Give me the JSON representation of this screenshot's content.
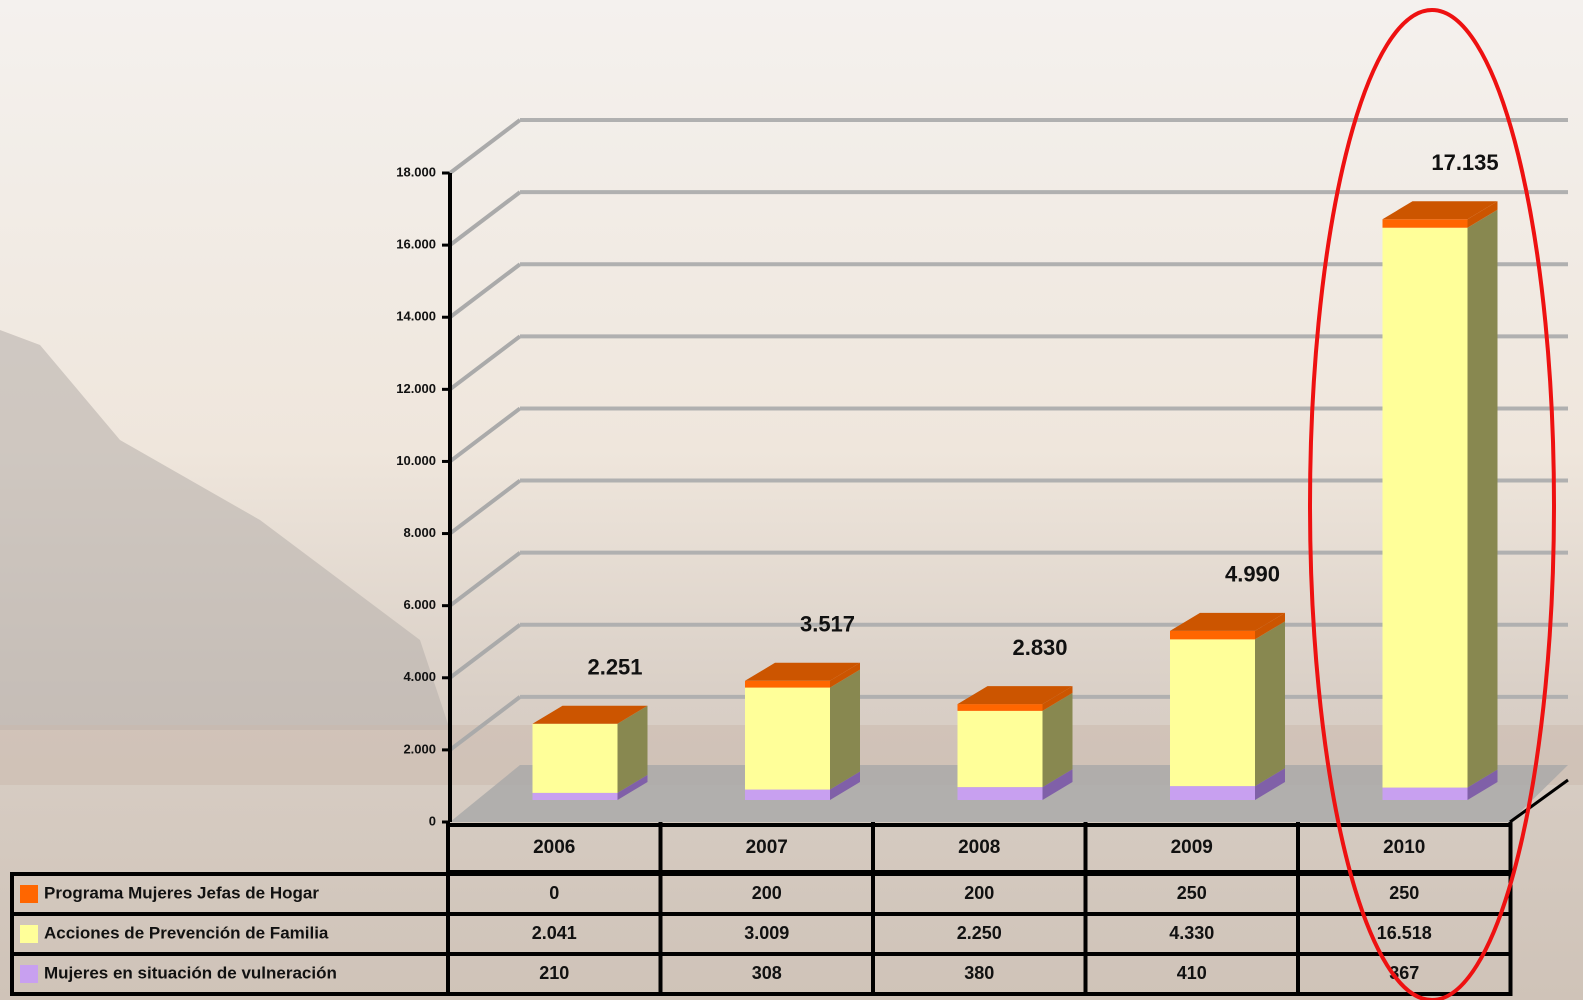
{
  "chart_data": {
    "type": "stacked-bar-3d",
    "categories": [
      "2006",
      "2007",
      "2008",
      "2009",
      "2010"
    ],
    "series": [
      {
        "name": "Mujeres en situación de vulneración",
        "color": "#c8a0f0",
        "values": [
          210,
          308,
          380,
          410,
          367
        ],
        "value_labels": [
          "210",
          "308",
          "380",
          "410",
          "367"
        ]
      },
      {
        "name": "Acciones de Prevención de Familia",
        "color": "#ffff99",
        "values": [
          2041,
          3009,
          2250,
          4330,
          16518
        ],
        "value_labels": [
          "2.041",
          "3.009",
          "2.250",
          "4.330",
          "16.518"
        ]
      },
      {
        "name": "Programa Mujeres Jefas de Hogar",
        "color": "#ff6600",
        "values": [
          0,
          200,
          200,
          250,
          250
        ],
        "value_labels": [
          "0",
          "200",
          "200",
          "250",
          "250"
        ]
      }
    ],
    "totals": {
      "values": [
        2251,
        3517,
        2830,
        4990,
        17135
      ],
      "value_labels": [
        "2.251",
        "3.517",
        "2.830",
        "4.990",
        "17.135"
      ]
    },
    "ylim": [
      0,
      18000
    ],
    "yticks": [
      0,
      {
        "value": 2000,
        "label": "2.000"
      },
      {
        "value": 4000,
        "label": "4.000"
      },
      {
        "value": 6000,
        "label": "6.000"
      },
      {
        "value": 8000,
        "label": "8.000"
      },
      {
        "value": 10000,
        "label": "10.000"
      },
      {
        "value": 12000,
        "label": "12.000"
      },
      {
        "value": 14000,
        "label": "14.000"
      },
      {
        "value": 16000,
        "label": "16.000"
      },
      {
        "value": 18000,
        "label": "18.000"
      }
    ],
    "grid": true
  }
}
